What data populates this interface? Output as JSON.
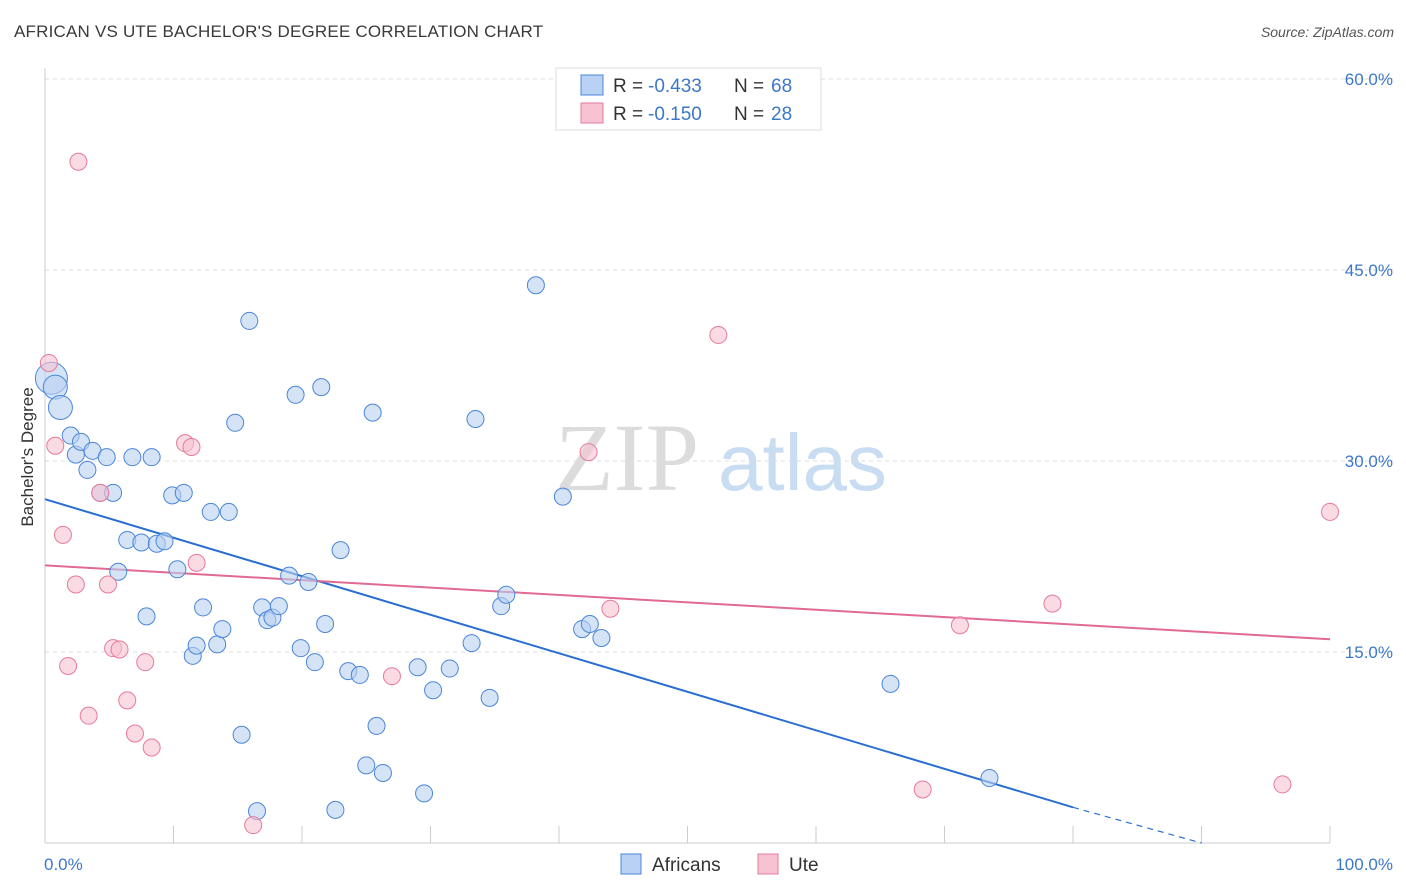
{
  "title": "AFRICAN VS UTE BACHELOR'S DEGREE CORRELATION CHART",
  "source": "Source: ZipAtlas.com",
  "watermark": {
    "zip": "ZIP",
    "atlas": "atlas"
  },
  "colors": {
    "blue": "#4a86d8",
    "blue_fill": "#b9d1f2",
    "blue_line": "#2a6fd0",
    "pink": "#e67a9a",
    "pink_fill": "#f7c3d2",
    "pink_line": "#e06a92",
    "axis_label": "#3c78c8",
    "grid": "#dddddd"
  },
  "legend_top": [
    {
      "r_label": "R = ",
      "r_value": "-0.433",
      "n_label": "N = ",
      "n_value": "68"
    },
    {
      "r_label": "R = ",
      "r_value": "-0.150",
      "n_label": "N = ",
      "n_value": "28"
    }
  ],
  "chart_data": {
    "type": "scatter",
    "title": "AFRICAN VS UTE BACHELOR'S DEGREE CORRELATION CHART",
    "xlabel": "",
    "ylabel": "Bachelor's Degree",
    "xlim": [
      0,
      100
    ],
    "ylim": [
      0,
      60
    ],
    "x_tick_labels": [
      "0.0%",
      "100.0%"
    ],
    "y_ticks": [
      15,
      30,
      45,
      60
    ],
    "y_tick_labels": [
      "15.0%",
      "30.0%",
      "45.0%",
      "60.0%"
    ],
    "grid": true,
    "legend_position": "bottom-center",
    "series": [
      {
        "name": "Africans",
        "r": -0.433,
        "n": 68,
        "trend": {
          "x0": 0,
          "y0": 27.0,
          "x1": 80,
          "y1": 2.8,
          "dash_to_x": 90,
          "dash_to_y": 0
        },
        "points": [
          {
            "x": 0.5,
            "y": 36.5,
            "s": "l"
          },
          {
            "x": 0.8,
            "y": 35.8,
            "s": "m"
          },
          {
            "x": 1.2,
            "y": 34.2,
            "s": "m"
          },
          {
            "x": 2.0,
            "y": 32.0
          },
          {
            "x": 2.4,
            "y": 30.5
          },
          {
            "x": 2.8,
            "y": 31.5
          },
          {
            "x": 3.3,
            "y": 29.3
          },
          {
            "x": 3.7,
            "y": 30.8
          },
          {
            "x": 4.3,
            "y": 27.5
          },
          {
            "x": 4.8,
            "y": 30.3
          },
          {
            "x": 5.3,
            "y": 27.5
          },
          {
            "x": 5.7,
            "y": 21.3
          },
          {
            "x": 6.4,
            "y": 23.8
          },
          {
            "x": 6.8,
            "y": 30.3
          },
          {
            "x": 7.5,
            "y": 23.6
          },
          {
            "x": 7.9,
            "y": 17.8
          },
          {
            "x": 8.3,
            "y": 30.3
          },
          {
            "x": 8.7,
            "y": 23.5
          },
          {
            "x": 9.3,
            "y": 23.7
          },
          {
            "x": 9.9,
            "y": 27.3
          },
          {
            "x": 10.3,
            "y": 21.5
          },
          {
            "x": 10.8,
            "y": 27.5
          },
          {
            "x": 11.5,
            "y": 14.7
          },
          {
            "x": 11.8,
            "y": 15.5
          },
          {
            "x": 12.3,
            "y": 18.5
          },
          {
            "x": 12.9,
            "y": 26.0
          },
          {
            "x": 13.4,
            "y": 15.6
          },
          {
            "x": 13.8,
            "y": 16.8
          },
          {
            "x": 14.3,
            "y": 26.0
          },
          {
            "x": 14.8,
            "y": 33.0
          },
          {
            "x": 15.3,
            "y": 8.5
          },
          {
            "x": 15.9,
            "y": 41.0
          },
          {
            "x": 16.5,
            "y": 2.5
          },
          {
            "x": 16.9,
            "y": 18.5
          },
          {
            "x": 17.3,
            "y": 17.5
          },
          {
            "x": 17.7,
            "y": 17.7
          },
          {
            "x": 18.2,
            "y": 18.6
          },
          {
            "x": 19.0,
            "y": 21.0
          },
          {
            "x": 19.5,
            "y": 35.2
          },
          {
            "x": 19.9,
            "y": 15.3
          },
          {
            "x": 20.5,
            "y": 20.5
          },
          {
            "x": 21.0,
            "y": 14.2
          },
          {
            "x": 21.5,
            "y": 35.8
          },
          {
            "x": 21.8,
            "y": 17.2
          },
          {
            "x": 22.6,
            "y": 2.6
          },
          {
            "x": 23.0,
            "y": 23.0
          },
          {
            "x": 23.6,
            "y": 13.5
          },
          {
            "x": 24.5,
            "y": 13.2
          },
          {
            "x": 25.0,
            "y": 6.1
          },
          {
            "x": 25.5,
            "y": 33.8
          },
          {
            "x": 25.8,
            "y": 9.2
          },
          {
            "x": 26.3,
            "y": 5.5
          },
          {
            "x": 29.0,
            "y": 13.8
          },
          {
            "x": 29.5,
            "y": 3.9
          },
          {
            "x": 30.2,
            "y": 12.0
          },
          {
            "x": 31.5,
            "y": 13.7
          },
          {
            "x": 33.2,
            "y": 15.7
          },
          {
            "x": 33.5,
            "y": 33.3
          },
          {
            "x": 34.6,
            "y": 11.4
          },
          {
            "x": 35.5,
            "y": 18.6
          },
          {
            "x": 35.9,
            "y": 19.5
          },
          {
            "x": 38.2,
            "y": 43.8
          },
          {
            "x": 40.3,
            "y": 27.2
          },
          {
            "x": 41.8,
            "y": 16.8
          },
          {
            "x": 42.4,
            "y": 17.2
          },
          {
            "x": 43.3,
            "y": 16.1
          },
          {
            "x": 65.8,
            "y": 12.5
          },
          {
            "x": 73.5,
            "y": 5.1
          }
        ]
      },
      {
        "name": "Ute",
        "r": -0.15,
        "n": 28,
        "trend": {
          "x0": 0,
          "y0": 21.8,
          "x1": 100,
          "y1": 16.0
        },
        "points": [
          {
            "x": 0.3,
            "y": 37.7
          },
          {
            "x": 0.8,
            "y": 31.2
          },
          {
            "x": 1.4,
            "y": 24.2
          },
          {
            "x": 1.8,
            "y": 13.9
          },
          {
            "x": 2.4,
            "y": 20.3
          },
          {
            "x": 2.6,
            "y": 53.5
          },
          {
            "x": 3.4,
            "y": 10.0
          },
          {
            "x": 4.3,
            "y": 27.5
          },
          {
            "x": 4.9,
            "y": 20.3
          },
          {
            "x": 5.3,
            "y": 15.3
          },
          {
            "x": 5.8,
            "y": 15.2
          },
          {
            "x": 6.4,
            "y": 11.2
          },
          {
            "x": 7.0,
            "y": 8.6
          },
          {
            "x": 7.8,
            "y": 14.2
          },
          {
            "x": 8.3,
            "y": 7.5
          },
          {
            "x": 10.9,
            "y": 31.4
          },
          {
            "x": 11.4,
            "y": 31.1
          },
          {
            "x": 11.8,
            "y": 22.0
          },
          {
            "x": 16.2,
            "y": 1.4
          },
          {
            "x": 27.0,
            "y": 13.1
          },
          {
            "x": 42.3,
            "y": 30.7
          },
          {
            "x": 44.0,
            "y": 18.4
          },
          {
            "x": 52.4,
            "y": 39.9
          },
          {
            "x": 68.3,
            "y": 4.2
          },
          {
            "x": 71.2,
            "y": 17.1
          },
          {
            "x": 78.4,
            "y": 18.8
          },
          {
            "x": 96.3,
            "y": 4.6
          },
          {
            "x": 100.0,
            "y": 26.0
          }
        ]
      }
    ]
  }
}
